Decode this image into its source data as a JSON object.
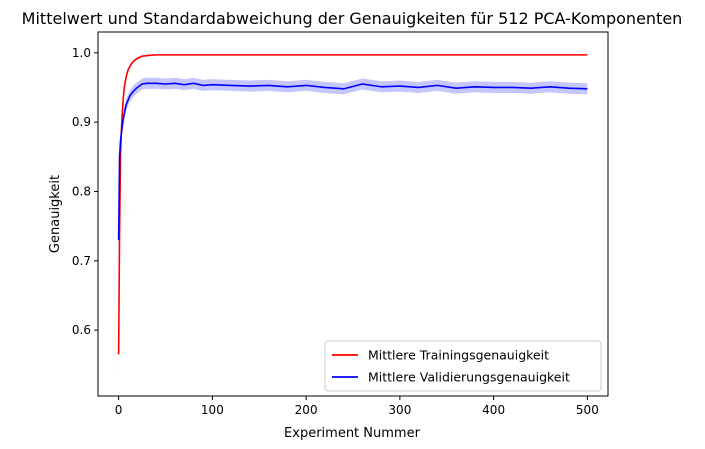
{
  "chart_data": {
    "type": "line",
    "title": "Mittelwert und Standardabweichung der Genauigkeiten für 512 PCA-Komponenten",
    "xlabel": "Experiment Nummer",
    "ylabel": "Genauigkeit",
    "xlim": [
      -22,
      522
    ],
    "ylim": [
      0.505,
      1.03
    ],
    "xticks": [
      0,
      100,
      200,
      300,
      400,
      500
    ],
    "yticks": [
      0.6,
      0.7,
      0.8,
      0.9,
      1.0
    ],
    "xtick_labels": [
      "0",
      "100",
      "200",
      "300",
      "400",
      "500"
    ],
    "ytick_labels": [
      "0.6",
      "0.7",
      "0.8",
      "0.9",
      "1.0"
    ],
    "grid": false,
    "legend_position": "bottom-right",
    "series": [
      {
        "name": "Mittlere Trainingsgenauigkeit",
        "color": "#ff0000",
        "band_color": "#ffb3b3",
        "x": [
          0,
          1,
          2,
          3,
          4,
          5,
          6,
          8,
          10,
          13,
          16,
          20,
          25,
          30,
          40,
          50,
          60,
          80,
          100,
          150,
          200,
          250,
          300,
          350,
          400,
          450,
          500
        ],
        "y": [
          0.565,
          0.74,
          0.85,
          0.89,
          0.915,
          0.935,
          0.95,
          0.965,
          0.975,
          0.983,
          0.988,
          0.992,
          0.995,
          0.996,
          0.997,
          0.997,
          0.997,
          0.997,
          0.997,
          0.997,
          0.997,
          0.997,
          0.997,
          0.997,
          0.997,
          0.997,
          0.997
        ],
        "std": [
          0.035,
          0.02,
          0.012,
          0.008,
          0.006,
          0.005,
          0.004,
          0.003,
          0.003,
          0.002,
          0.002,
          0.002,
          0.002,
          0.001,
          0.001,
          0.001,
          0.001,
          0.001,
          0.001,
          0.001,
          0.001,
          0.001,
          0.001,
          0.001,
          0.001,
          0.001,
          0.001
        ]
      },
      {
        "name": "Mittlere Validierungsgenauigkeit",
        "color": "#0000ff",
        "band_color": "#b3b3ff",
        "x": [
          0,
          1,
          2,
          3,
          5,
          8,
          12,
          16,
          20,
          25,
          30,
          40,
          50,
          60,
          70,
          80,
          90,
          100,
          120,
          140,
          160,
          180,
          200,
          220,
          240,
          260,
          280,
          300,
          320,
          340,
          360,
          380,
          400,
          420,
          440,
          460,
          480,
          500
        ],
        "y": [
          0.73,
          0.85,
          0.872,
          0.885,
          0.905,
          0.925,
          0.938,
          0.945,
          0.95,
          0.955,
          0.956,
          0.956,
          0.955,
          0.956,
          0.954,
          0.956,
          0.953,
          0.954,
          0.953,
          0.952,
          0.953,
          0.951,
          0.953,
          0.95,
          0.948,
          0.955,
          0.951,
          0.952,
          0.95,
          0.953,
          0.949,
          0.951,
          0.95,
          0.95,
          0.949,
          0.951,
          0.949,
          0.948
        ],
        "std": [
          0.02,
          0.015,
          0.012,
          0.011,
          0.01,
          0.009,
          0.008,
          0.008,
          0.008,
          0.008,
          0.008,
          0.008,
          0.008,
          0.008,
          0.008,
          0.008,
          0.008,
          0.008,
          0.008,
          0.008,
          0.008,
          0.008,
          0.008,
          0.008,
          0.008,
          0.008,
          0.008,
          0.008,
          0.008,
          0.008,
          0.008,
          0.008,
          0.008,
          0.008,
          0.008,
          0.008,
          0.008,
          0.008
        ]
      }
    ]
  }
}
